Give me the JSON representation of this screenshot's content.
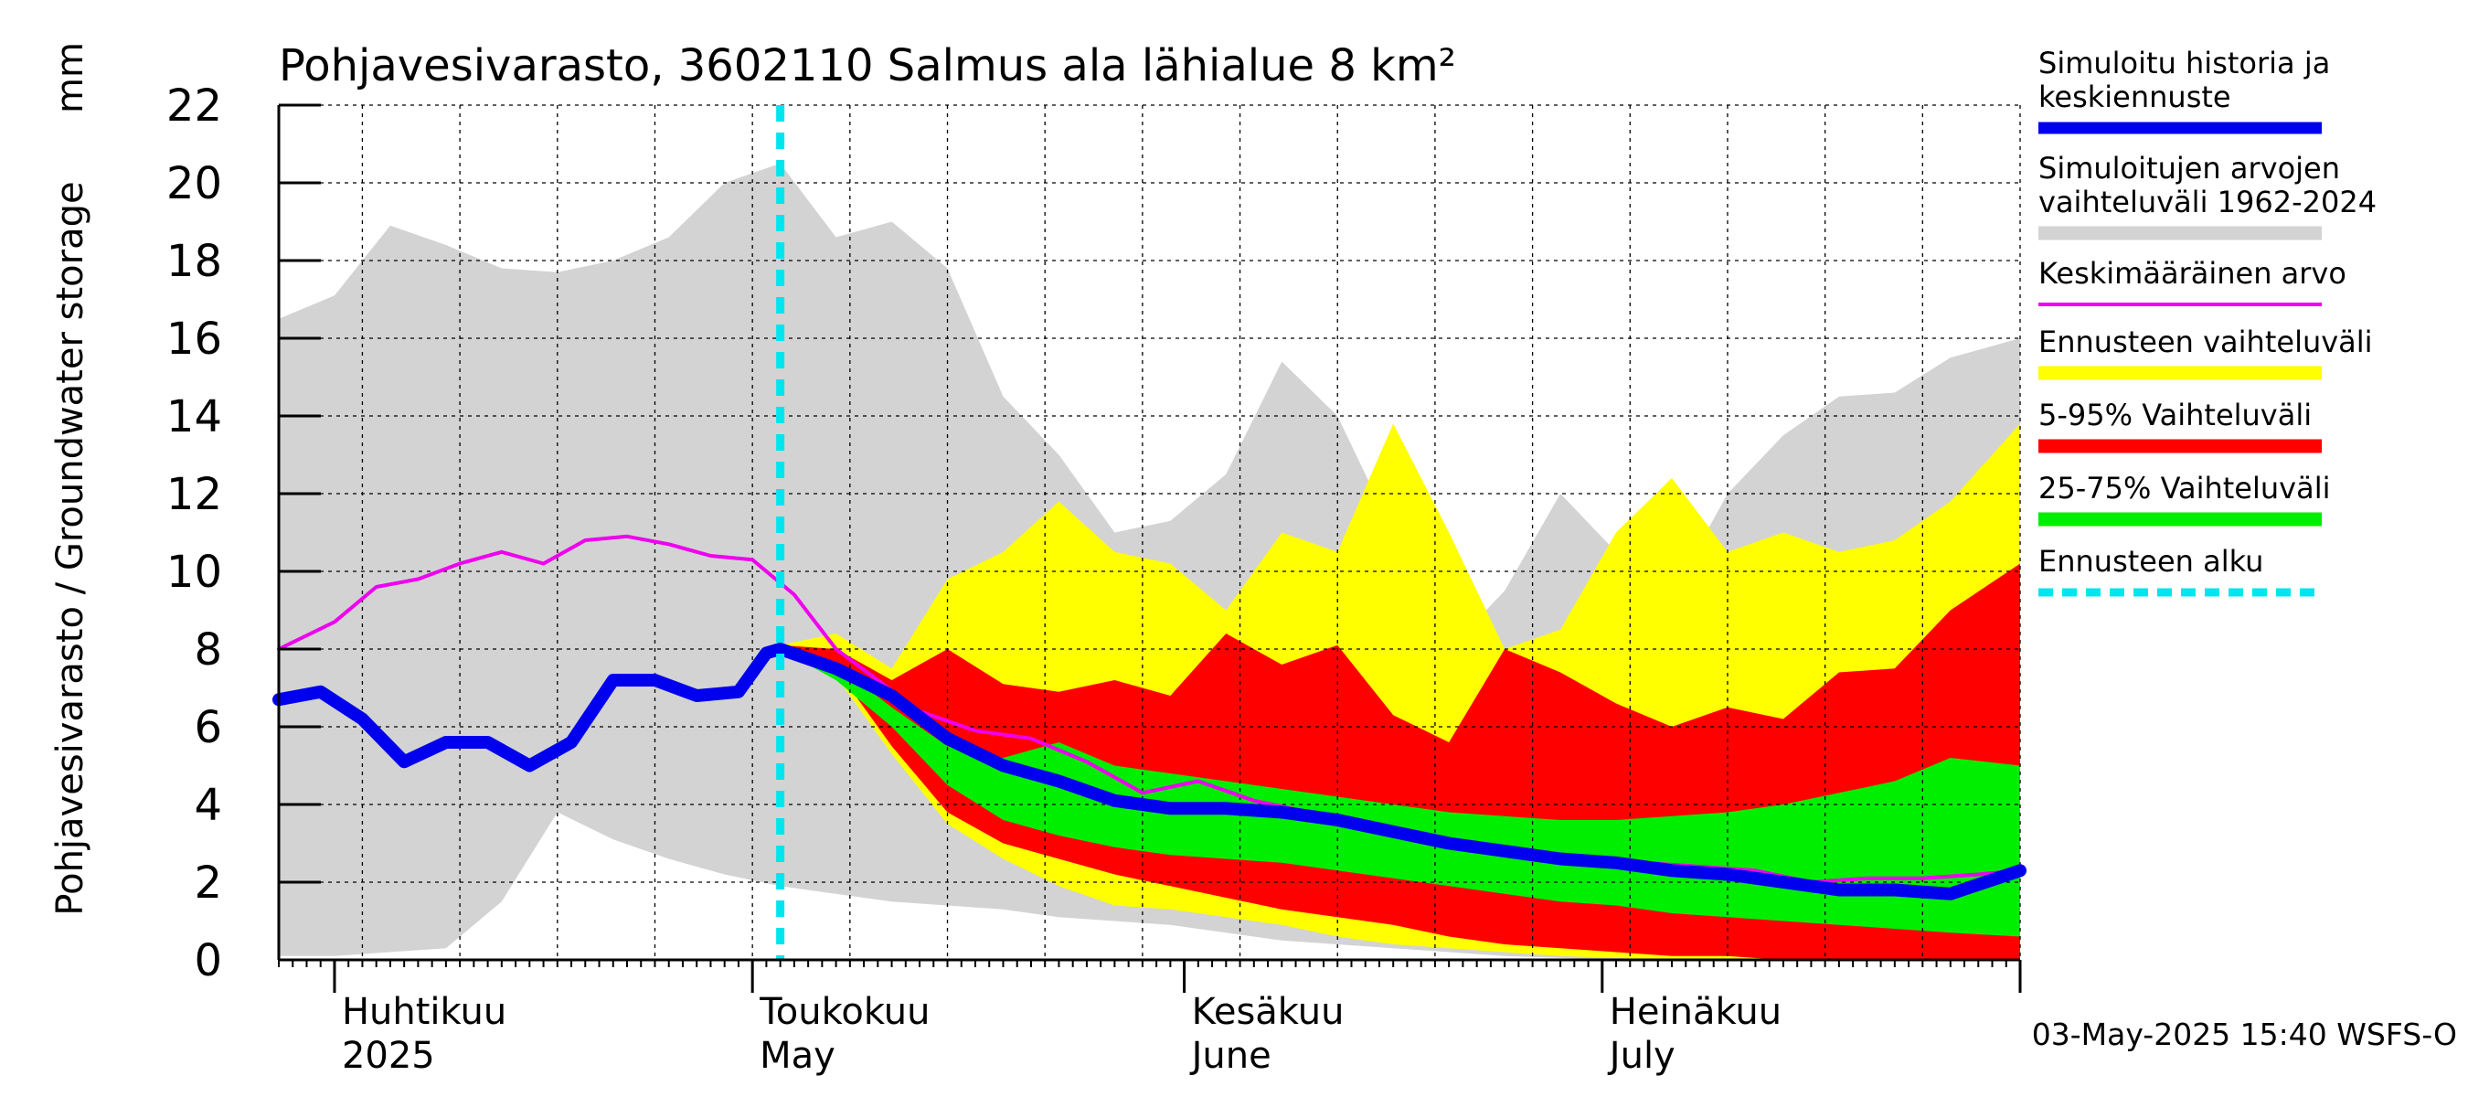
{
  "chart_data": {
    "type": "area",
    "title": "Pohjavesivarasto, 3602110 Salmus ala lähialue 8 km²",
    "ylabel": "Pohjavesivarasto / Groundwater storage",
    "yunit": "mm",
    "ylim": [
      0,
      22
    ],
    "yticks": [
      0,
      2,
      4,
      6,
      8,
      10,
      12,
      14,
      16,
      18,
      20,
      22
    ],
    "xlim": [
      "2025-03-28",
      "2025-07-31"
    ],
    "grid": true,
    "legend_position": "right",
    "month_labels": [
      {
        "fi": "Huhtikuu",
        "en": "2025",
        "date": "2025-04-01"
      },
      {
        "fi": "Toukokuu",
        "en": "May",
        "date": "2025-05-01"
      },
      {
        "fi": "Kesäkuu",
        "en": "June",
        "date": "2025-06-01"
      },
      {
        "fi": "Heinäkuu",
        "en": "July",
        "date": "2025-07-01"
      }
    ],
    "forecast_start": "2025-05-03",
    "timestamp": "03-May-2025 15:40 WSFS-O",
    "colors": {
      "history": "#0000ee",
      "range": "#d3d3d3",
      "mean": "#ee00ee",
      "forecast_range": "#ffff00",
      "p5_95": "#ff0000",
      "p25_75": "#00ee00",
      "forecast_start": "#00e5ee"
    },
    "legend": [
      {
        "key": "history",
        "label": "Simuloitu historia ja keskiennuste"
      },
      {
        "key": "range",
        "label": "Simuloitujen arvojen vaihteluväli 1962-2024"
      },
      {
        "key": "mean",
        "label": "Keskimääräinen arvo"
      },
      {
        "key": "forecast_range",
        "label": "Ennusteen vaihteluväli"
      },
      {
        "key": "p5_95",
        "label": "5-95% Vaihteluväli"
      },
      {
        "key": "p25_75",
        "label": "25-75% Vaihteluväli"
      },
      {
        "key": "forecast_start",
        "label": "Ennusteen alku"
      }
    ],
    "series": {
      "range": {
        "x": [
          "2025-03-28",
          "2025-04-01",
          "2025-04-05",
          "2025-04-09",
          "2025-04-13",
          "2025-04-17",
          "2025-04-21",
          "2025-04-25",
          "2025-04-29",
          "2025-05-03",
          "2025-05-07",
          "2025-05-11",
          "2025-05-15",
          "2025-05-19",
          "2025-05-23",
          "2025-05-27",
          "2025-05-31",
          "2025-06-04",
          "2025-06-08",
          "2025-06-12",
          "2025-06-16",
          "2025-06-20",
          "2025-06-24",
          "2025-06-28",
          "2025-07-02",
          "2025-07-06",
          "2025-07-10",
          "2025-07-14",
          "2025-07-18",
          "2025-07-22",
          "2025-07-26",
          "2025-07-31"
        ],
        "low": [
          0.1,
          0.1,
          0.2,
          0.3,
          1.5,
          3.8,
          3.1,
          2.6,
          2.2,
          1.9,
          1.7,
          1.5,
          1.4,
          1.3,
          1.1,
          1.0,
          0.9,
          0.7,
          0.5,
          0.4,
          0.3,
          0.2,
          0.1,
          0.05,
          0.0,
          0.0,
          0.0,
          0.0,
          0.0,
          0.0,
          0.0,
          0.0
        ],
        "high": [
          16.5,
          17.1,
          18.9,
          18.4,
          17.8,
          17.7,
          18.0,
          18.6,
          20.0,
          20.5,
          18.6,
          19.0,
          17.8,
          14.5,
          13.0,
          11.0,
          11.3,
          12.5,
          15.4,
          14.0,
          11.0,
          8.0,
          9.5,
          12.0,
          10.5,
          9.4,
          12.0,
          13.5,
          14.5,
          14.6,
          15.5,
          16.0
        ]
      },
      "mean": {
        "x": [
          "2025-03-28",
          "2025-04-01",
          "2025-04-04",
          "2025-04-07",
          "2025-04-10",
          "2025-04-13",
          "2025-04-16",
          "2025-04-19",
          "2025-04-22",
          "2025-04-25",
          "2025-04-28",
          "2025-05-01",
          "2025-05-04",
          "2025-05-07",
          "2025-05-10",
          "2025-05-13",
          "2025-05-17",
          "2025-05-21",
          "2025-05-25",
          "2025-05-29",
          "2025-06-02",
          "2025-06-06",
          "2025-06-10",
          "2025-06-14",
          "2025-06-18",
          "2025-06-22",
          "2025-06-26",
          "2025-06-30",
          "2025-07-04",
          "2025-07-08",
          "2025-07-12",
          "2025-07-16",
          "2025-07-20",
          "2025-07-24",
          "2025-07-28",
          "2025-07-31"
        ],
        "values": [
          8.0,
          8.7,
          9.6,
          9.8,
          10.2,
          10.5,
          10.2,
          10.8,
          10.9,
          10.7,
          10.4,
          10.3,
          9.4,
          8.0,
          7.2,
          6.4,
          5.9,
          5.7,
          5.1,
          4.3,
          4.6,
          4.1,
          3.8,
          3.4,
          3.1,
          2.8,
          2.6,
          2.5,
          2.5,
          2.4,
          2.3,
          2.0,
          2.1,
          2.1,
          2.2,
          2.3
        ]
      },
      "history": {
        "x": [
          "2025-03-28",
          "2025-03-31",
          "2025-04-03",
          "2025-04-06",
          "2025-04-09",
          "2025-04-12",
          "2025-04-15",
          "2025-04-18",
          "2025-04-21",
          "2025-04-24",
          "2025-04-27",
          "2025-04-30",
          "2025-05-02",
          "2025-05-03"
        ],
        "values": [
          6.7,
          6.9,
          6.2,
          5.1,
          5.6,
          5.6,
          5.0,
          5.6,
          7.2,
          7.2,
          6.8,
          6.9,
          7.9,
          8.0
        ]
      },
      "median": {
        "x": [
          "2025-05-03",
          "2025-05-07",
          "2025-05-11",
          "2025-05-15",
          "2025-05-19",
          "2025-05-23",
          "2025-05-27",
          "2025-05-31",
          "2025-06-04",
          "2025-06-08",
          "2025-06-12",
          "2025-06-16",
          "2025-06-20",
          "2025-06-24",
          "2025-06-28",
          "2025-07-02",
          "2025-07-06",
          "2025-07-10",
          "2025-07-14",
          "2025-07-18",
          "2025-07-22",
          "2025-07-26",
          "2025-07-31"
        ],
        "values": [
          8.0,
          7.5,
          6.8,
          5.7,
          5.0,
          4.6,
          4.1,
          3.9,
          3.9,
          3.8,
          3.6,
          3.3,
          3.0,
          2.8,
          2.6,
          2.5,
          2.3,
          2.2,
          2.0,
          1.8,
          1.8,
          1.7,
          2.3
        ]
      },
      "forecast_range": {
        "x": [
          "2025-05-03",
          "2025-05-07",
          "2025-05-11",
          "2025-05-15",
          "2025-05-19",
          "2025-05-23",
          "2025-05-27",
          "2025-05-31",
          "2025-06-04",
          "2025-06-08",
          "2025-06-12",
          "2025-06-16",
          "2025-06-20",
          "2025-06-24",
          "2025-06-28",
          "2025-07-02",
          "2025-07-06",
          "2025-07-10",
          "2025-07-14",
          "2025-07-18",
          "2025-07-22",
          "2025-07-26",
          "2025-07-31"
        ],
        "low": [
          8.0,
          7.3,
          5.3,
          3.5,
          2.6,
          1.9,
          1.4,
          1.3,
          1.1,
          0.9,
          0.6,
          0.4,
          0.3,
          0.2,
          0.1,
          0.05,
          0.0,
          0.0,
          0.0,
          0.0,
          0.0,
          0.0,
          0.0
        ],
        "high": [
          8.1,
          8.4,
          7.5,
          9.8,
          10.5,
          11.8,
          10.5,
          10.2,
          9.0,
          11.0,
          10.5,
          13.8,
          11.0,
          8.0,
          8.5,
          11.0,
          12.4,
          10.5,
          11.0,
          10.5,
          10.8,
          11.8,
          13.8
        ]
      },
      "p5_95": {
        "x": [
          "2025-05-03",
          "2025-05-07",
          "2025-05-11",
          "2025-05-15",
          "2025-05-19",
          "2025-05-23",
          "2025-05-27",
          "2025-05-31",
          "2025-06-04",
          "2025-06-08",
          "2025-06-12",
          "2025-06-16",
          "2025-06-20",
          "2025-06-24",
          "2025-06-28",
          "2025-07-02",
          "2025-07-06",
          "2025-07-10",
          "2025-07-14",
          "2025-07-18",
          "2025-07-22",
          "2025-07-26",
          "2025-07-31"
        ],
        "low": [
          8.0,
          7.5,
          5.5,
          3.8,
          3.0,
          2.6,
          2.2,
          1.9,
          1.6,
          1.3,
          1.1,
          0.9,
          0.6,
          0.4,
          0.3,
          0.2,
          0.1,
          0.1,
          0.0,
          0.0,
          0.0,
          0.0,
          0.0
        ],
        "high": [
          8.1,
          8.0,
          7.2,
          8.0,
          7.1,
          6.9,
          7.2,
          6.8,
          8.4,
          7.6,
          8.1,
          6.3,
          5.6,
          8.0,
          7.4,
          6.6,
          6.0,
          6.5,
          6.2,
          7.4,
          7.5,
          9.0,
          10.2
        ]
      },
      "p25_75": {
        "x": [
          "2025-05-03",
          "2025-05-07",
          "2025-05-11",
          "2025-05-15",
          "2025-05-19",
          "2025-05-23",
          "2025-05-27",
          "2025-05-31",
          "2025-06-04",
          "2025-06-08",
          "2025-06-12",
          "2025-06-16",
          "2025-06-20",
          "2025-06-24",
          "2025-06-28",
          "2025-07-02",
          "2025-07-06",
          "2025-07-10",
          "2025-07-14",
          "2025-07-18",
          "2025-07-22",
          "2025-07-26",
          "2025-07-31"
        ],
        "low": [
          8.0,
          7.2,
          6.0,
          4.5,
          3.6,
          3.2,
          2.9,
          2.7,
          2.6,
          2.5,
          2.3,
          2.1,
          1.9,
          1.7,
          1.5,
          1.4,
          1.2,
          1.1,
          1.0,
          0.9,
          0.8,
          0.7,
          0.6
        ],
        "high": [
          8.0,
          7.6,
          6.5,
          5.5,
          5.2,
          5.6,
          5.0,
          4.8,
          4.6,
          4.4,
          4.2,
          4.0,
          3.8,
          3.7,
          3.6,
          3.6,
          3.7,
          3.8,
          4.0,
          4.3,
          4.6,
          5.2,
          5.0
        ]
      }
    }
  }
}
